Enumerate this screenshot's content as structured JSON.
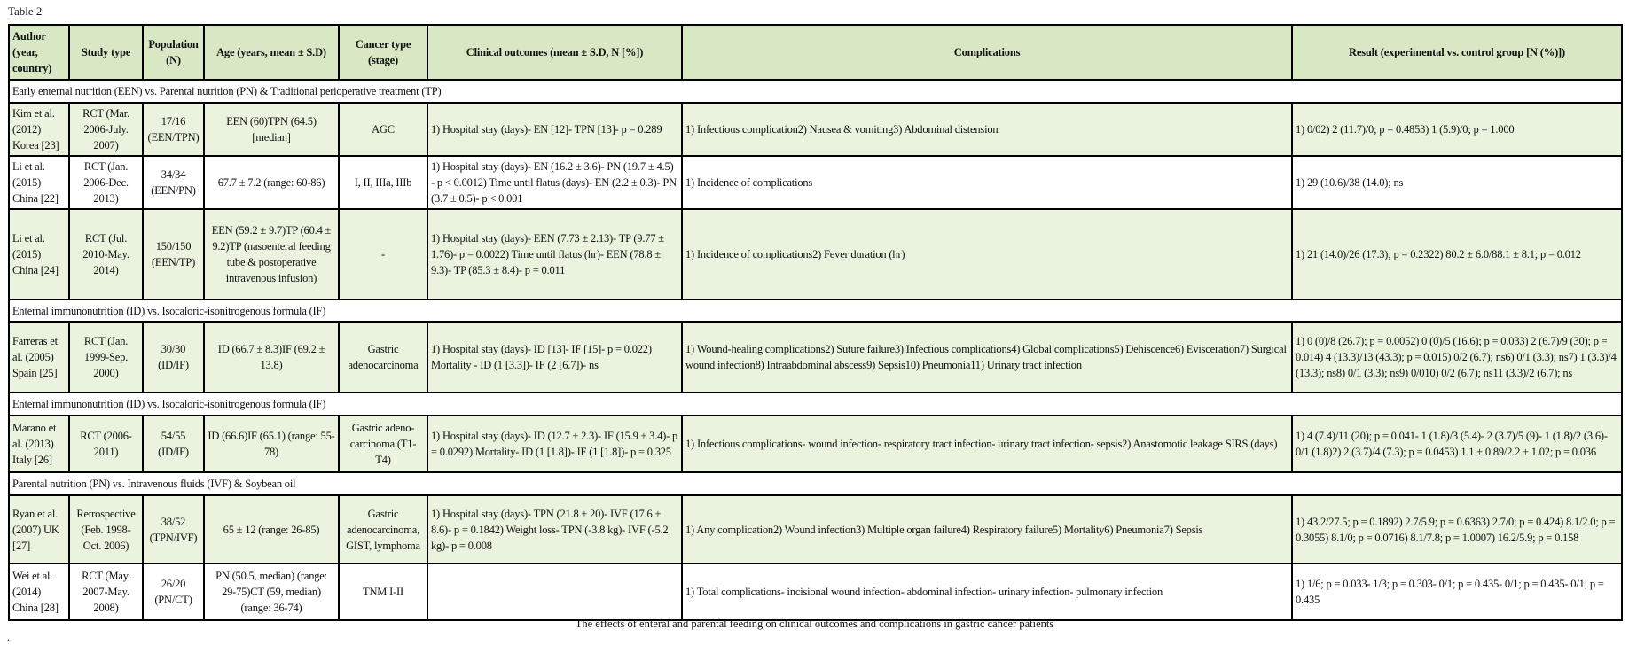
{
  "title": "Table 2",
  "caption": "The effects of enteral and parental feeding on clinical outcomes and complications in gastric cancer patients",
  "footnote_mark": ".",
  "colors": {
    "header_bg": "#d8e8c5",
    "row_green": "#e9f3de",
    "row_white": "#ffffff",
    "border": "#000000"
  },
  "headers": [
    "Author (year, country)",
    "Study type",
    "Population (N)",
    "Age (years, mean ± S.D)",
    "Cancer type (stage)",
    "Clinical outcomes (mean ± S.D, N [%])",
    "Complications",
    "Result (experimental vs. control group [N (%)])"
  ],
  "groups": [
    "Early enternal nutrition (EEN) vs. Parental nutrition (PN) & Traditional perioperative treatment (TP)",
    "Enternal immunonutrition (ID) vs. Isocaloric-isonitrogenous formula (IF)",
    "Enternal immunonutrition (ID) vs. Isocaloric-isonitrogenous formula (IF)",
    "Parental nutrition (PN) vs. Intravenous fluids (IVF) & Soybean oil"
  ],
  "rows": [
    [
      "Kim et al. (2012) Korea [23]",
      "RCT (Mar. 2006-July. 2007)",
      "17/16 (EEN/TPN)",
      "EEN (60)TPN (64.5) [median]",
      "AGC",
      "1) Hospital stay (days)- EN [12]- TPN [13]- p = 0.289",
      "1) Infectious complication2) Nausea & vomiting3) Abdominal distension",
      "1) 0/02) 2 (11.7)/0; p = 0.4853) 1 (5.9)/0; p = 1.000"
    ],
    [
      "Li et al. (2015) China [22]",
      "RCT (Jan. 2006-Dec. 2013)",
      "34/34 (EEN/PN)",
      "67.7 ± 7.2 (range: 60-86)",
      "I, II, IIIa, IIIb",
      "1) Hospital stay (days)- EN (16.2 ± 3.6)- PN (19.7 ± 4.5) - p < 0.0012) Time until flatus (days)- EN (2.2 ± 0.3)- PN (3.7 ± 0.5)- p < 0.001",
      "1) Incidence of complications",
      "1) 29 (10.6)/38 (14.0); ns"
    ],
    [
      "Li et al. (2015) China [24]",
      "RCT (Jul. 2010-May. 2014)",
      "150/150 (EEN/TP)",
      "EEN (59.2 ± 9.7)TP (60.4 ± 9.2)TP (nasoenteral feeding tube & postoperative intravenous infusion)",
      "-",
      "1) Hospital stay (days)- EEN (7.73 ± 2.13)- TP (9.77 ± 1.76)- p = 0.0022) Time until flatus (hr)- EEN (78.8 ± 9.3)- TP (85.3 ± 8.4)- p = 0.011",
      "1) Incidence of complications2) Fever duration (hr)",
      "1) 21 (14.0)/26 (17.3); p = 0.2322) 80.2 ± 6.0/88.1 ± 8.1; p = 0.012"
    ],
    [
      "Farreras et al. (2005) Spain [25]",
      "RCT (Jan. 1999-Sep. 2000)",
      "30/30 (ID/IF)",
      "ID (66.7 ± 8.3)IF (69.2 ± 13.8)",
      "Gastric adenocarcinoma",
      "1) Hospital stay (days)- ID [13]- IF [15]- p = 0.022) Mortality - ID (1 [3.3])- IF (2 [6.7])- ns",
      "1) Wound-healing complications2) Suture failure3) Infectious complications4) Global complications5) Dehiscence6) Evisceration7) Surgical wound infection8) Intraabdominal abscess9) Sepsis10) Pneumonia11) Urinary tract infection",
      "1) 0 (0)/8 (26.7); p = 0.0052) 0 (0)/5 (16.6); p = 0.033) 2 (6.7)/9 (30); p = 0.014) 4 (13.3)/13 (43.3); p = 0.015) 0/2 (6.7); ns6) 0/1 (3.3); ns7) 1 (3.3)/4 (13.3); ns8) 0/1 (3.3); ns9) 0/010) 0/2 (6.7); ns11 (3.3)/2 (6.7); ns"
    ],
    [
      "Marano et al. (2013) Italy [26]",
      "RCT (2006-2011)",
      "54/55 (ID/IF)",
      "ID (66.6)IF (65.1) (range: 55-78)",
      "Gastric adeno-carcinoma (T1-T4)",
      "1) Hospital stay (days)- ID (12.7 ± 2.3)- IF (15.9 ± 3.4)- p = 0.0292) Mortality- ID (1 [1.8])- IF (1 [1.8])- p = 0.325",
      "1) Infectious complications- wound infection- respiratory tract infection- urinary tract infection- sepsis2) Anastomotic leakage SIRS (days)",
      "1) 4 (7.4)/11 (20); p = 0.041- 1 (1.8)/3 (5.4)- 2 (3.7)/5 (9)- 1 (1.8)/2 (3.6)- 0/1 (1.8)2) 2 (3.7)/4 (7.3); p = 0.0453) 1.1 ± 0.89/2.2 ± 1.02; p = 0.036"
    ],
    [
      "Ryan et al. (2007) UK [27]",
      "Retrospective (Feb. 1998-Oct. 2006)",
      "38/52 (TPN/IVF)",
      "65 ± 12 (range: 26-85)",
      "Gastric adenocarcinoma, GIST, lymphoma",
      "1) Hospital stay (days)- TPN (21.8 ± 20)- IVF (17.6 ± 8.6)- p = 0.1842) Weight loss- TPN (-3.8 kg)- IVF (-5.2 kg)- p = 0.008",
      "1) Any complication2) Wound infection3) Multiple organ failure4) Respiratory failure5) Mortality6) Pneumonia7) Sepsis",
      "1) 43.2/27.5; p = 0.1892) 2.7/5.9; p = 0.6363) 2.7/0; p = 0.424) 8.1/2.0; p = 0.3055) 8.1/0; p = 0.0716) 8.1/7.8; p = 1.0007) 16.2/5.9; p = 0.158"
    ],
    [
      "Wei et al. (2014) China [28]",
      "RCT (May. 2007-May. 2008)",
      "26/20 (PN/CT)",
      "PN (50.5, median) (range: 29-75)CT (59, median) (range: 36-74)",
      "TNM I-II",
      "",
      "1) Total complications- incisional wound infection- abdominal infection- urinary infection- pulmonary infection",
      "1) 1/6; p = 0.033- 1/3; p = 0.303- 0/1; p = 0.435- 0/1; p = 0.435- 0/1; p = 0.435"
    ]
  ]
}
